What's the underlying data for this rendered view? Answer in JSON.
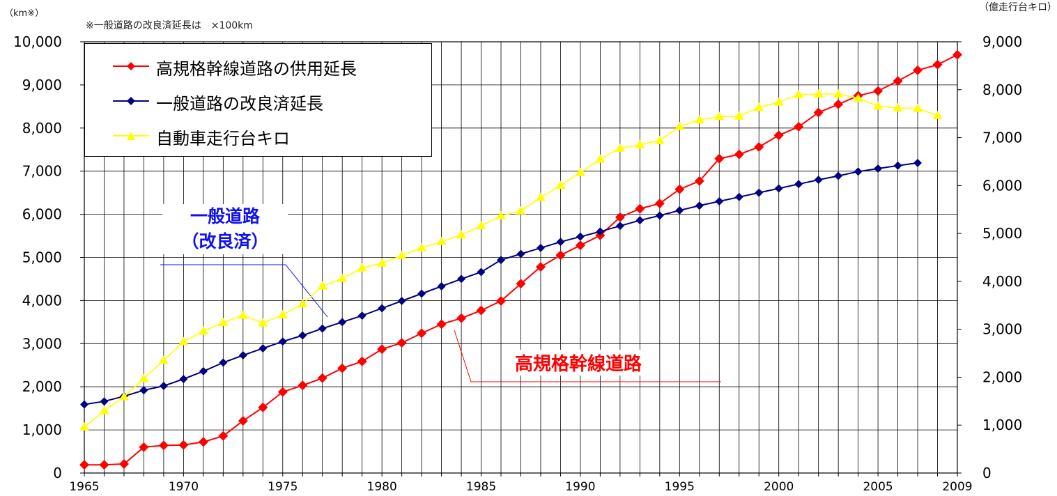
{
  "chart_data": {
    "type": "line",
    "x": [
      1965,
      1966,
      1967,
      1968,
      1969,
      1970,
      1971,
      1972,
      1973,
      1974,
      1975,
      1976,
      1977,
      1978,
      1979,
      1980,
      1981,
      1982,
      1983,
      1984,
      1985,
      1986,
      1987,
      1988,
      1989,
      1990,
      1991,
      1992,
      1993,
      1994,
      1995,
      1996,
      1997,
      1998,
      1999,
      2000,
      2001,
      2002,
      2003,
      2004,
      2005,
      2006,
      2007,
      2008,
      2009
    ],
    "x_tick_labels": [
      "1965",
      "1970",
      "1975",
      "1980",
      "1985",
      "1990",
      "1995",
      "2000",
      "2005",
      "2009"
    ],
    "y_left": {
      "label": "（km※）",
      "range": [
        0,
        10000
      ],
      "ticks": [
        "0",
        "1,000",
        "2,000",
        "3,000",
        "4,000",
        "5,000",
        "6,000",
        "7,000",
        "8,000",
        "9,000",
        "10,000"
      ]
    },
    "y_right": {
      "label": "（億走行台キロ）",
      "range": [
        0,
        9000
      ],
      "ticks": [
        "0",
        "1,000",
        "2,000",
        "3,000",
        "4,000",
        "5,000",
        "6,000",
        "7,000",
        "8,000",
        "9,000"
      ]
    },
    "note": "※一般道路の改良済延長は　×100km",
    "series": [
      {
        "name": "高規格幹線道路の供用延長",
        "axis": "left",
        "color": "#ff0000",
        "marker": "diamond",
        "values": [
          190,
          190,
          210,
          600,
          640,
          650,
          720,
          860,
          1210,
          1520,
          1880,
          2030,
          2200,
          2430,
          2590,
          2870,
          3020,
          3240,
          3450,
          3590,
          3770,
          3990,
          4390,
          4780,
          5050,
          5280,
          5510,
          5930,
          6130,
          6250,
          6580,
          6770,
          7290,
          7390,
          7560,
          7830,
          8030,
          8360,
          8550,
          8750,
          8860,
          9090,
          9340,
          9470,
          9700
        ]
      },
      {
        "name": "一般道路の改良済延長",
        "axis": "left",
        "color": "#000080",
        "marker": "diamond",
        "values": [
          1590,
          1660,
          1780,
          1920,
          2020,
          2180,
          2360,
          2560,
          2730,
          2890,
          3050,
          3190,
          3350,
          3500,
          3650,
          3820,
          3990,
          4160,
          4330,
          4500,
          4660,
          4940,
          5080,
          5220,
          5360,
          5480,
          5600,
          5730,
          5860,
          5970,
          6090,
          6200,
          6300,
          6400,
          6500,
          6600,
          6700,
          6800,
          6890,
          6990,
          7060,
          7130,
          7190,
          null,
          null
        ]
      },
      {
        "name": "自動車走行台キロ",
        "axis": "right",
        "color": "#ffff00",
        "marker": "triangle",
        "values": [
          960,
          1300,
          1590,
          1970,
          2350,
          2740,
          2960,
          3140,
          3290,
          3130,
          3300,
          3530,
          3900,
          4060,
          4280,
          4380,
          4540,
          4700,
          4830,
          4970,
          5160,
          5370,
          5470,
          5750,
          6000,
          6270,
          6550,
          6780,
          6850,
          6940,
          7230,
          7370,
          7440,
          7450,
          7630,
          7740,
          7900,
          7910,
          7910,
          7820,
          7660,
          7620,
          7610,
          7460,
          null
        ]
      }
    ],
    "annotations": [
      {
        "text_lines": [
          "一般道路",
          "（改良済）"
        ],
        "color": "#1010ee",
        "series": "一般道路の改良済延長"
      },
      {
        "text": "高規格幹線道路",
        "color": "#ff0000",
        "series": "高規格幹線道路の供用延長"
      }
    ],
    "legend_position": "top-left",
    "grid": true
  }
}
